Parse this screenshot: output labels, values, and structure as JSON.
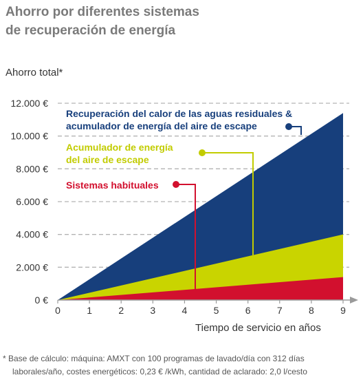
{
  "title_line1": "Ahorro por diferentes sistemas",
  "title_line2": "de recuperación de energía",
  "footnote_line1": "* Base de cálculo: máquina: AMXT con 100 programas de lavado/día con 312 días",
  "footnote_line2": "laborales/año, costes energéticos: 0,23 € /kWh, cantidad de aclarado: 2,0 l/cesto",
  "chart_data": {
    "type": "area",
    "ylabel": "Ahorro total*",
    "xlabel": "Tiempo de servicio en años",
    "x": [
      0,
      9
    ],
    "x_ticks": [
      "0",
      "1",
      "2",
      "3",
      "4",
      "5",
      "6",
      "7",
      "8",
      "9"
    ],
    "y_ticks": [
      "0 €",
      "2.000 €",
      "4.000 €",
      "6.000 €",
      "8.000 €",
      "10.000 €",
      "12.000 €"
    ],
    "xlim": [
      0,
      9
    ],
    "ylim": [
      0,
      12000
    ],
    "grid": "horizontal dashed",
    "series": [
      {
        "name": "Recuperación del calor de las aguas residuales & acumulador de energía del aire de escape",
        "label_lines": [
          "Recuperación del calor de las aguas residuales &",
          "acumulador de energía del aire de escape"
        ],
        "values": [
          0,
          11400
        ],
        "color": "#173f7c",
        "label_color": "#173f7c"
      },
      {
        "name": "Acumulador de energía del aire de escape",
        "label_lines": [
          "Acumulador de energía",
          "del aire de escape"
        ],
        "values": [
          0,
          4000
        ],
        "color": "#c9d400",
        "label_color": "#c2cc00"
      },
      {
        "name": "Sistemas habituales",
        "label_lines": [
          "Sistemas habituales"
        ],
        "values": [
          0,
          1400
        ],
        "color": "#d2102e",
        "label_color": "#d2102e"
      }
    ]
  }
}
